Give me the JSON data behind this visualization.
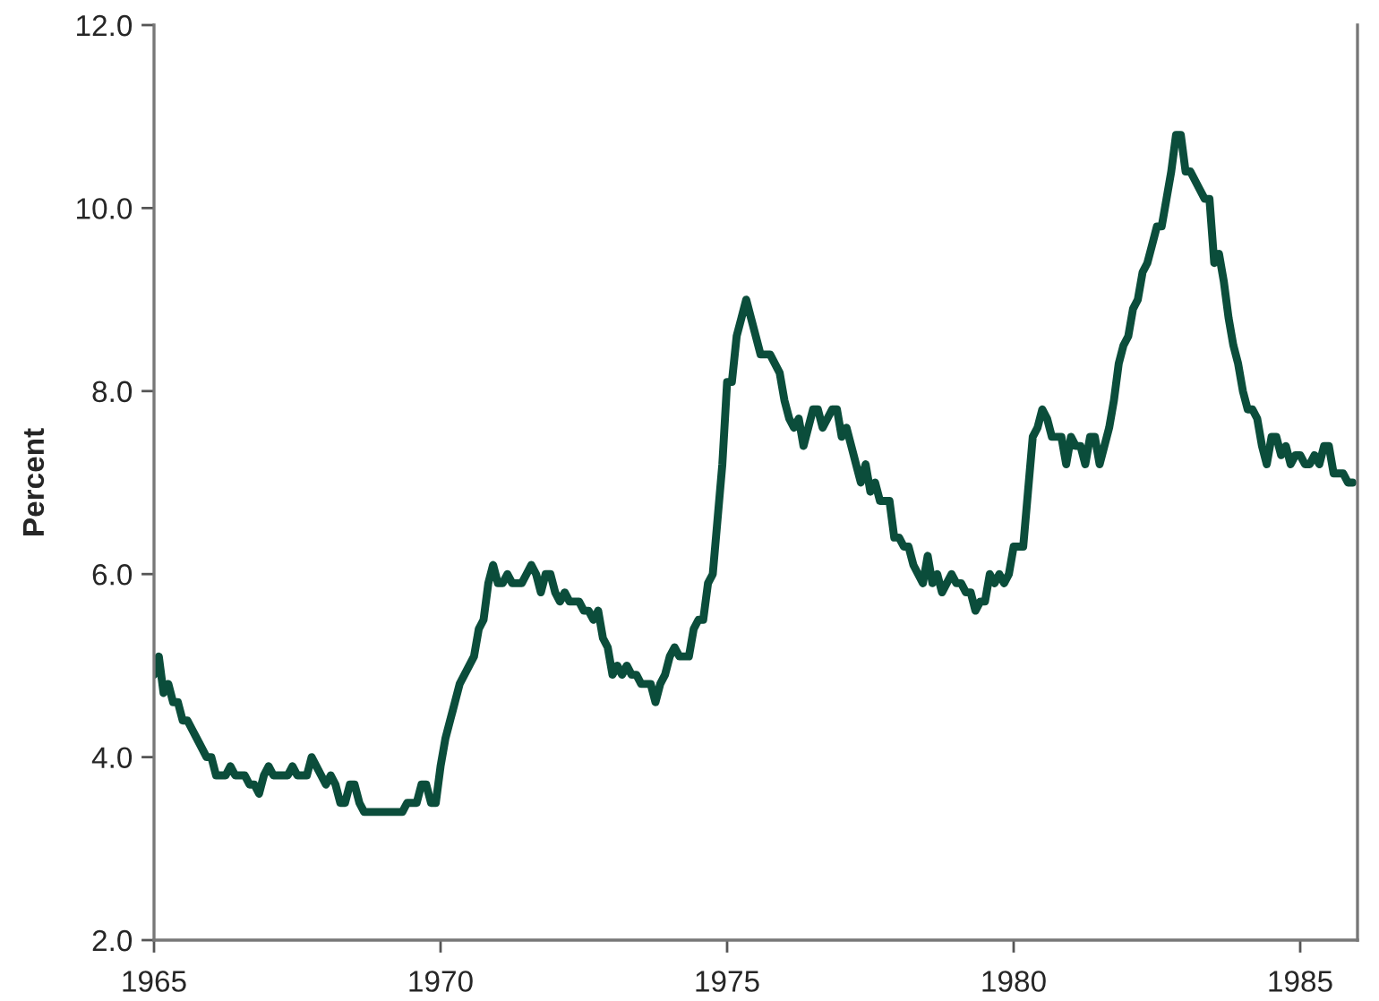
{
  "chart_data": {
    "type": "line",
    "ylabel": "Percent",
    "x": [
      "1965-01",
      "1965-02",
      "1965-03",
      "1965-04",
      "1965-05",
      "1965-06",
      "1965-07",
      "1965-08",
      "1965-09",
      "1965-10",
      "1965-11",
      "1965-12",
      "1966-01",
      "1966-02",
      "1966-03",
      "1966-04",
      "1966-05",
      "1966-06",
      "1966-07",
      "1966-08",
      "1966-09",
      "1966-10",
      "1966-11",
      "1966-12",
      "1967-01",
      "1967-02",
      "1967-03",
      "1967-04",
      "1967-05",
      "1967-06",
      "1967-07",
      "1967-08",
      "1967-09",
      "1967-10",
      "1967-11",
      "1967-12",
      "1968-01",
      "1968-02",
      "1968-03",
      "1968-04",
      "1968-05",
      "1968-06",
      "1968-07",
      "1968-08",
      "1968-09",
      "1968-10",
      "1968-11",
      "1968-12",
      "1969-01",
      "1969-02",
      "1969-03",
      "1969-04",
      "1969-05",
      "1969-06",
      "1969-07",
      "1969-08",
      "1969-09",
      "1969-10",
      "1969-11",
      "1969-12",
      "1970-01",
      "1970-02",
      "1970-03",
      "1970-04",
      "1970-05",
      "1970-06",
      "1970-07",
      "1970-08",
      "1970-09",
      "1970-10",
      "1970-11",
      "1970-12",
      "1971-01",
      "1971-02",
      "1971-03",
      "1971-04",
      "1971-05",
      "1971-06",
      "1971-07",
      "1971-08",
      "1971-09",
      "1971-10",
      "1971-11",
      "1971-12",
      "1972-01",
      "1972-02",
      "1972-03",
      "1972-04",
      "1972-05",
      "1972-06",
      "1972-07",
      "1972-08",
      "1972-09",
      "1972-10",
      "1972-11",
      "1972-12",
      "1973-01",
      "1973-02",
      "1973-03",
      "1973-04",
      "1973-05",
      "1973-06",
      "1973-07",
      "1973-08",
      "1973-09",
      "1973-10",
      "1973-11",
      "1973-12",
      "1974-01",
      "1974-02",
      "1974-03",
      "1974-04",
      "1974-05",
      "1974-06",
      "1974-07",
      "1974-08",
      "1974-09",
      "1974-10",
      "1974-11",
      "1974-12",
      "1975-01",
      "1975-02",
      "1975-03",
      "1975-04",
      "1975-05",
      "1975-06",
      "1975-07",
      "1975-08",
      "1975-09",
      "1975-10",
      "1975-11",
      "1975-12",
      "1976-01",
      "1976-02",
      "1976-03",
      "1976-04",
      "1976-05",
      "1976-06",
      "1976-07",
      "1976-08",
      "1976-09",
      "1976-10",
      "1976-11",
      "1976-12",
      "1977-01",
      "1977-02",
      "1977-03",
      "1977-04",
      "1977-05",
      "1977-06",
      "1977-07",
      "1977-08",
      "1977-09",
      "1977-10",
      "1977-11",
      "1977-12",
      "1978-01",
      "1978-02",
      "1978-03",
      "1978-04",
      "1978-05",
      "1978-06",
      "1978-07",
      "1978-08",
      "1978-09",
      "1978-10",
      "1978-11",
      "1978-12",
      "1979-01",
      "1979-02",
      "1979-03",
      "1979-04",
      "1979-05",
      "1979-06",
      "1979-07",
      "1979-08",
      "1979-09",
      "1979-10",
      "1979-11",
      "1979-12",
      "1980-01",
      "1980-02",
      "1980-03",
      "1980-04",
      "1980-05",
      "1980-06",
      "1980-07",
      "1980-08",
      "1980-09",
      "1980-10",
      "1980-11",
      "1980-12",
      "1981-01",
      "1981-02",
      "1981-03",
      "1981-04",
      "1981-05",
      "1981-06",
      "1981-07",
      "1981-08",
      "1981-09",
      "1981-10",
      "1981-11",
      "1981-12",
      "1982-01",
      "1982-02",
      "1982-03",
      "1982-04",
      "1982-05",
      "1982-06",
      "1982-07",
      "1982-08",
      "1982-09",
      "1982-10",
      "1982-11",
      "1982-12",
      "1983-01",
      "1983-02",
      "1983-03",
      "1983-04",
      "1983-05",
      "1983-06",
      "1983-07",
      "1983-08",
      "1983-09",
      "1983-10",
      "1983-11",
      "1983-12",
      "1984-01",
      "1984-02",
      "1984-03",
      "1984-04",
      "1984-05",
      "1984-06",
      "1984-07",
      "1984-08",
      "1984-09",
      "1984-10",
      "1984-11",
      "1984-12",
      "1985-01",
      "1985-02",
      "1985-03",
      "1985-04",
      "1985-05",
      "1985-06",
      "1985-07",
      "1985-08",
      "1985-09",
      "1985-10",
      "1985-11",
      "1985-12"
    ],
    "series": [
      {
        "color": "#0b4d3b",
        "values": [
          4.9,
          5.1,
          4.7,
          4.8,
          4.6,
          4.6,
          4.4,
          4.4,
          4.3,
          4.2,
          4.1,
          4.0,
          4.0,
          3.8,
          3.8,
          3.8,
          3.9,
          3.8,
          3.8,
          3.8,
          3.7,
          3.7,
          3.6,
          3.8,
          3.9,
          3.8,
          3.8,
          3.8,
          3.8,
          3.9,
          3.8,
          3.8,
          3.8,
          4.0,
          3.9,
          3.8,
          3.7,
          3.8,
          3.7,
          3.5,
          3.5,
          3.7,
          3.7,
          3.5,
          3.4,
          3.4,
          3.4,
          3.4,
          3.4,
          3.4,
          3.4,
          3.4,
          3.4,
          3.5,
          3.5,
          3.5,
          3.7,
          3.7,
          3.5,
          3.5,
          3.9,
          4.2,
          4.4,
          4.6,
          4.8,
          4.9,
          5.0,
          5.1,
          5.4,
          5.5,
          5.9,
          6.1,
          5.9,
          5.9,
          6.0,
          5.9,
          5.9,
          5.9,
          6.0,
          6.1,
          6.0,
          5.8,
          6.0,
          6.0,
          5.8,
          5.7,
          5.8,
          5.7,
          5.7,
          5.7,
          5.6,
          5.6,
          5.5,
          5.6,
          5.3,
          5.2,
          4.9,
          5.0,
          4.9,
          5.0,
          4.9,
          4.9,
          4.8,
          4.8,
          4.8,
          4.6,
          4.8,
          4.9,
          5.1,
          5.2,
          5.1,
          5.1,
          5.1,
          5.4,
          5.5,
          5.5,
          5.9,
          6.0,
          6.6,
          7.2,
          8.1,
          8.1,
          8.6,
          8.8,
          9.0,
          8.8,
          8.6,
          8.4,
          8.4,
          8.4,
          8.3,
          8.2,
          7.9,
          7.7,
          7.6,
          7.7,
          7.4,
          7.6,
          7.8,
          7.8,
          7.6,
          7.7,
          7.8,
          7.8,
          7.5,
          7.6,
          7.4,
          7.2,
          7.0,
          7.2,
          6.9,
          7.0,
          6.8,
          6.8,
          6.8,
          6.4,
          6.4,
          6.3,
          6.3,
          6.1,
          6.0,
          5.9,
          6.2,
          5.9,
          6.0,
          5.8,
          5.9,
          6.0,
          5.9,
          5.9,
          5.8,
          5.8,
          5.6,
          5.7,
          5.7,
          6.0,
          5.9,
          6.0,
          5.9,
          6.0,
          6.3,
          6.3,
          6.3,
          6.9,
          7.5,
          7.6,
          7.8,
          7.7,
          7.5,
          7.5,
          7.5,
          7.2,
          7.5,
          7.4,
          7.4,
          7.2,
          7.5,
          7.5,
          7.2,
          7.4,
          7.6,
          7.9,
          8.3,
          8.5,
          8.6,
          8.9,
          9.0,
          9.3,
          9.4,
          9.6,
          9.8,
          9.8,
          10.1,
          10.4,
          10.8,
          10.8,
          10.4,
          10.4,
          10.3,
          10.2,
          10.1,
          10.1,
          9.4,
          9.5,
          9.2,
          8.8,
          8.5,
          8.3,
          8.0,
          7.8,
          7.8,
          7.7,
          7.4,
          7.2,
          7.5,
          7.5,
          7.3,
          7.4,
          7.2,
          7.3,
          7.3,
          7.2,
          7.2,
          7.3,
          7.2,
          7.4,
          7.4,
          7.1,
          7.1,
          7.1,
          7.0,
          7.0
        ]
      }
    ],
    "xlim": [
      "1965",
      "1986"
    ],
    "xticks": [
      "1965",
      "1970",
      "1975",
      "1980",
      "1985"
    ],
    "ylim": [
      2,
      12
    ],
    "yticks": [
      {
        "value": 2,
        "label": "2.0"
      },
      {
        "value": 4,
        "label": "4.0"
      },
      {
        "value": 6,
        "label": "6.0"
      },
      {
        "value": 8,
        "label": "8.0"
      },
      {
        "value": 10,
        "label": "10.0"
      },
      {
        "value": 12,
        "label": "12.0"
      }
    ],
    "grid": false,
    "marker": "none",
    "line_style": "solid"
  }
}
